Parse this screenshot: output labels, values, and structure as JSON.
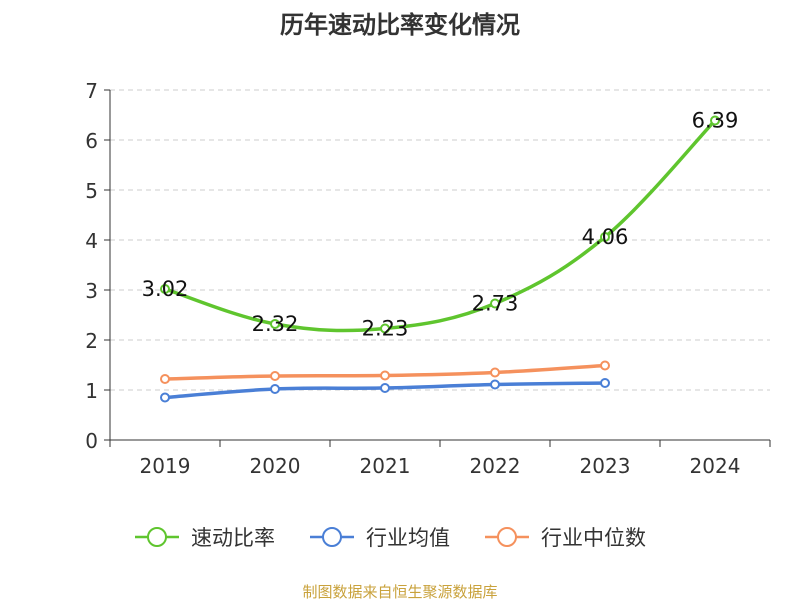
{
  "chart_data": {
    "type": "line",
    "title": "历年速动比率变化情况",
    "categories": [
      "2019",
      "2020",
      "2021",
      "2022",
      "2023",
      "2024"
    ],
    "ylim": [
      0,
      7
    ],
    "yticks": [
      0,
      1,
      2,
      3,
      4,
      5,
      6,
      7
    ],
    "grid": true,
    "legend_position": "bottom",
    "series": [
      {
        "name": "速动比率",
        "color": "#5fc52e",
        "values": [
          3.02,
          2.32,
          2.23,
          2.73,
          4.06,
          6.39
        ],
        "labels": [
          "3.02",
          "2.32",
          "2.23",
          "2.73",
          "4.06",
          "6.39"
        ]
      },
      {
        "name": "行业均值",
        "color": "#4a7fd6",
        "values": [
          0.85,
          1.02,
          1.04,
          1.11,
          1.14,
          null
        ]
      },
      {
        "name": "行业中位数",
        "color": "#f5915d",
        "values": [
          1.22,
          1.28,
          1.29,
          1.35,
          1.49,
          null
        ]
      }
    ]
  },
  "source": "制图数据来自恒生聚源数据库",
  "colors": {
    "title": "#333333",
    "axis": "#333333",
    "grid": "#cccccc",
    "source": "#c9a23c"
  }
}
